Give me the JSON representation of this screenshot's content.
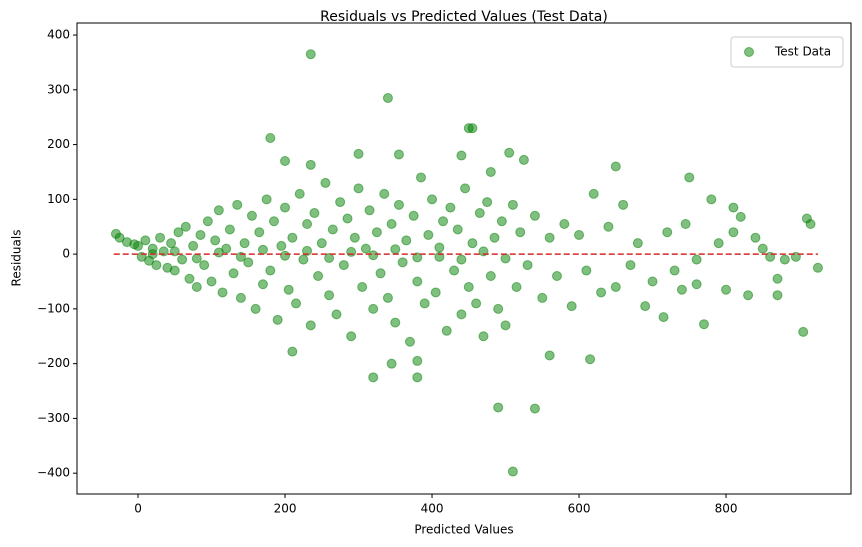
{
  "chart_data": {
    "type": "scatter",
    "title": "Residuals vs Predicted Values (Test Data)",
    "x_label": "Predicted Values",
    "y_label": "Residuals",
    "xlim": [
      -83,
      970
    ],
    "ylim": [
      -438,
      422
    ],
    "xticks": [
      0,
      200,
      400,
      600,
      800
    ],
    "yticks": [
      {
        "value": -400,
        "label": "−400"
      },
      {
        "value": -300,
        "label": "−300"
      },
      {
        "value": -200,
        "label": "−200"
      },
      {
        "value": -100,
        "label": "−100"
      },
      0,
      100,
      200,
      300,
      400
    ],
    "legend": "upper right",
    "reference_line": {
      "y": 0,
      "x": [
        -33,
        925
      ],
      "color": "#d62728"
    },
    "series": [
      {
        "name": "Test Data",
        "color": "#008000",
        "opacity": 0.5,
        "x": [
          235,
          340,
          450,
          455,
          180,
          510,
          490,
          540,
          560,
          615,
          905,
          910,
          915,
          925,
          -30,
          750,
          650,
          210,
          320,
          380,
          345,
          380,
          505,
          525,
          300,
          355,
          440,
          200,
          235,
          480,
          770,
          715,
          690,
          830,
          870,
          800,
          780,
          810,
          820,
          870,
          840,
          895,
          860,
          760,
          740,
          -25,
          -15,
          -5,
          0,
          5,
          10,
          15,
          20,
          25,
          30,
          35,
          40,
          45,
          50,
          55,
          60,
          65,
          70,
          75,
          80,
          85,
          90,
          95,
          100,
          105,
          110,
          115,
          120,
          125,
          130,
          135,
          140,
          145,
          150,
          155,
          160,
          165,
          170,
          175,
          180,
          185,
          190,
          195,
          200,
          205,
          210,
          215,
          220,
          225,
          230,
          235,
          240,
          245,
          250,
          255,
          260,
          265,
          270,
          275,
          280,
          285,
          290,
          295,
          300,
          305,
          310,
          315,
          320,
          325,
          330,
          335,
          340,
          345,
          350,
          355,
          360,
          365,
          370,
          375,
          380,
          385,
          390,
          395,
          400,
          405,
          410,
          415,
          420,
          425,
          430,
          435,
          440,
          445,
          450,
          455,
          460,
          465,
          470,
          475,
          480,
          485,
          490,
          495,
          500,
          510,
          515,
          520,
          530,
          540,
          550,
          560,
          570,
          580,
          590,
          600,
          610,
          620,
          630,
          640,
          650,
          660,
          670,
          680,
          700,
          720,
          730,
          745,
          760,
          790,
          810,
          850,
          880,
          20,
          50,
          80,
          110,
          140,
          170,
          200,
          230,
          260,
          290,
          320,
          350,
          380,
          410,
          440,
          470,
          500
        ],
        "y": [
          365,
          285,
          230,
          230,
          212,
          -397,
          -280,
          -282,
          -185,
          -192,
          -142,
          65,
          55,
          -25,
          37,
          140,
          160,
          -178,
          -225,
          -225,
          -200,
          -195,
          185,
          172,
          183,
          182,
          180,
          170,
          163,
          150,
          -128,
          -115,
          -95,
          -75,
          -75,
          -65,
          100,
          85,
          68,
          -45,
          30,
          -5,
          -5,
          -55,
          -65,
          30,
          22,
          18,
          15,
          -5,
          25,
          -12,
          10,
          -20,
          30,
          5,
          -25,
          20,
          -30,
          40,
          -10,
          50,
          -45,
          15,
          -60,
          35,
          -20,
          60,
          -50,
          25,
          80,
          -70,
          10,
          45,
          -35,
          90,
          -80,
          20,
          -15,
          70,
          -100,
          40,
          -55,
          100,
          -30,
          60,
          -120,
          15,
          85,
          -65,
          30,
          -90,
          110,
          -10,
          55,
          -130,
          75,
          -40,
          20,
          130,
          -75,
          45,
          -110,
          95,
          -20,
          65,
          -150,
          30,
          120,
          -60,
          10,
          80,
          -100,
          40,
          -35,
          110,
          -80,
          55,
          -125,
          90,
          -15,
          25,
          -160,
          70,
          -50,
          140,
          -90,
          35,
          100,
          -70,
          -5,
          60,
          -140,
          85,
          -30,
          45,
          -110,
          120,
          -60,
          20,
          -90,
          75,
          -150,
          95,
          -40,
          30,
          -100,
          60,
          -130,
          90,
          -60,
          40,
          -20,
          70,
          -80,
          30,
          -40,
          55,
          -95,
          35,
          -30,
          110,
          -70,
          50,
          -60,
          90,
          -20,
          20,
          -50,
          40,
          -30,
          55,
          -10,
          20,
          40,
          10,
          -10,
          0,
          5,
          -8,
          3,
          -5,
          8,
          -3,
          6,
          -7,
          4,
          -2,
          9,
          -6,
          12,
          -10,
          5,
          -8
        ]
      }
    ]
  }
}
